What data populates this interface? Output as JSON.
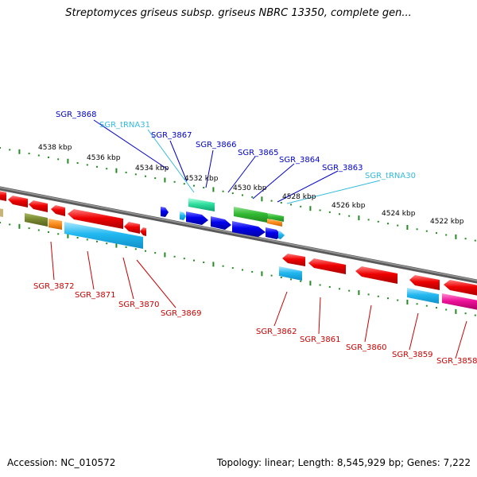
{
  "title": "Streptomyces griseus subsp. griseus NBRC 13350, complete gen...",
  "footer": {
    "accession": "Accession: NC_010572",
    "stats": "Topology: linear; Length: 8,545,929 bp; Genes: 7,222"
  },
  "colors": {
    "axis": "#808080",
    "ruler_dots": "#228b22",
    "forward_label": "#0000cc",
    "reverse_label": "#cc0000",
    "rna_label": "#33bbdd"
  },
  "scale_labels": [
    "4538 kbp",
    "4536 kbp",
    "4534 kbp",
    "4532 kbp",
    "4530 kbp",
    "4528 kbp",
    "4526 kbp",
    "4524 kbp",
    "4522 kbp"
  ],
  "upper_labels": [
    "SGR_3868",
    "SGR_tRNA31",
    "SGR_3867",
    "SGR_3866",
    "SGR_3865",
    "SGR_3864",
    "SGR_3863",
    "SGR_tRNA30"
  ],
  "lower_labels": [
    "SGR_3872",
    "SGR_3871",
    "SGR_3870",
    "SGR_3869",
    "SGR_3862",
    "SGR_3861",
    "SGR_3860",
    "SGR_3859",
    "SGR_3858"
  ]
}
